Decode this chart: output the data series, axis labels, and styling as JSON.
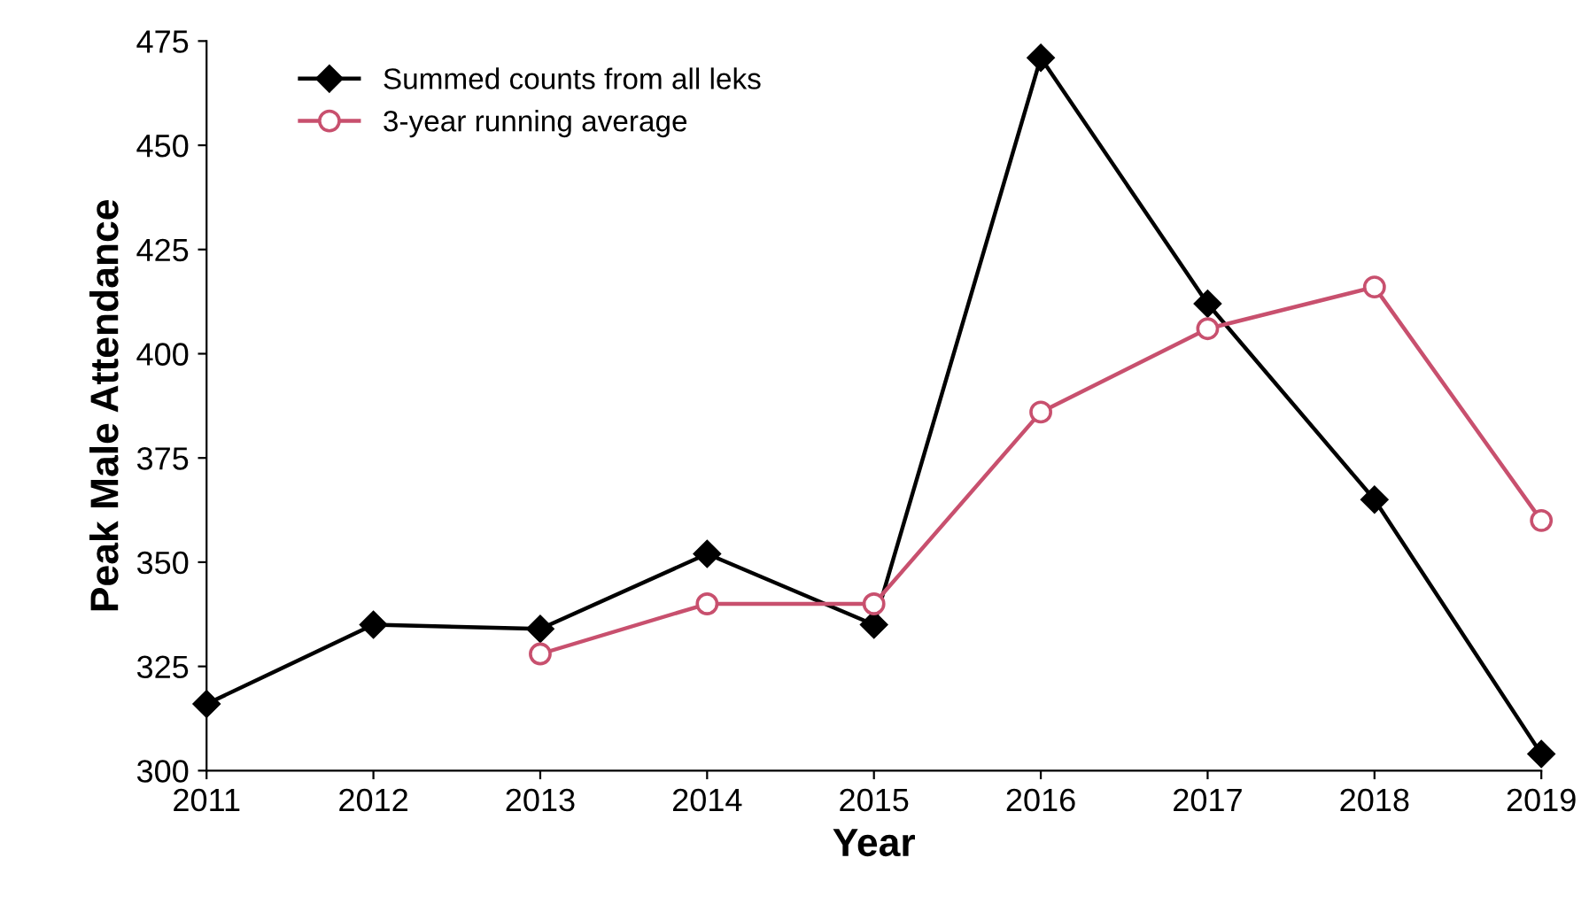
{
  "chart_data": {
    "type": "line",
    "xlabel": "Year",
    "ylabel": "Peak Male Attendance",
    "x": [
      2011,
      2012,
      2013,
      2014,
      2015,
      2016,
      2017,
      2018,
      2019
    ],
    "series": [
      {
        "name": "Summed counts from all leks",
        "color": "#000000",
        "marker": "diamond",
        "values": [
          316,
          335,
          334,
          352,
          335,
          471,
          412,
          365,
          304
        ]
      },
      {
        "name": "3-year running average",
        "color": "#c8506e",
        "marker": "circle",
        "values": [
          null,
          null,
          328,
          340,
          340,
          386,
          406,
          416,
          360
        ]
      }
    ],
    "xlim": [
      2011,
      2019
    ],
    "xticks": [
      2011,
      2012,
      2013,
      2014,
      2015,
      2016,
      2017,
      2018,
      2019
    ],
    "ylim": [
      300,
      475
    ],
    "yticks": [
      300,
      325,
      350,
      375,
      400,
      425,
      450,
      475
    ],
    "grid": false,
    "legend": "top left",
    "line_style": "solid"
  }
}
